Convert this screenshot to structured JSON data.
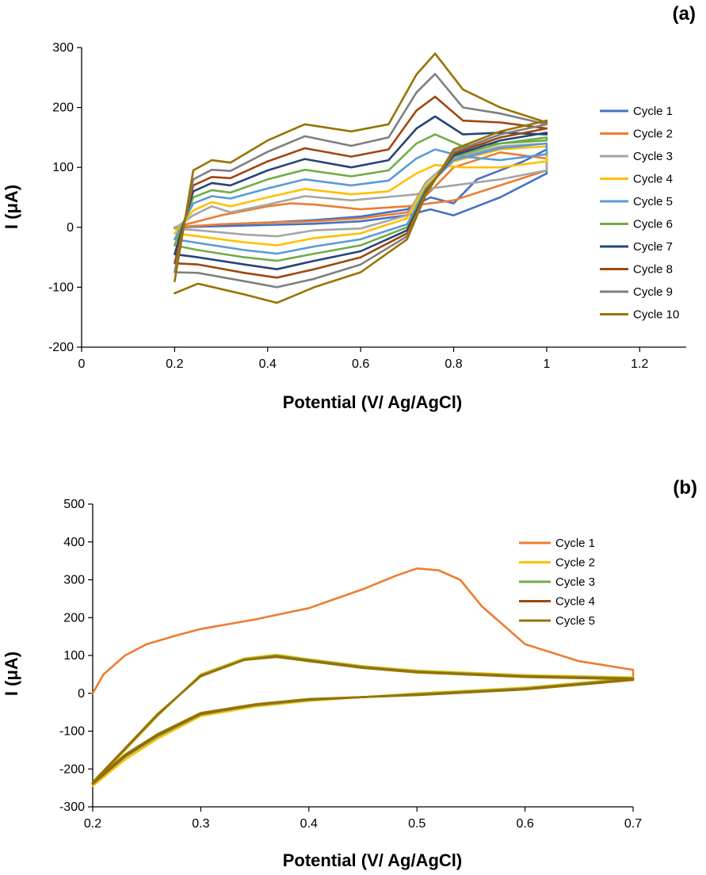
{
  "chart_data": [
    {
      "type": "line",
      "panel_label": "(a)",
      "xlabel": "Potential (V/ Ag/AgCl)",
      "ylabel": "I (μA)",
      "xlim": [
        0,
        1.3
      ],
      "ylim": [
        -200,
        300
      ],
      "x_ticks": [
        "0",
        "0.2",
        "0.4",
        "0.6",
        "0.8",
        "1",
        "1.2"
      ],
      "y_ticks": [
        "300",
        "200",
        "100",
        "0",
        "-100",
        "-200"
      ],
      "grid": false,
      "legend_position": "right",
      "series": [
        {
          "name": "Cycle 1",
          "color": "#4472C4",
          "x": [
            0.2,
            0.3,
            0.4,
            0.5,
            0.6,
            0.7,
            0.75,
            0.8,
            0.9,
            1.0,
            1.0,
            0.95,
            0.85,
            0.8,
            0.75,
            0.7,
            0.6,
            0.5,
            0.4,
            0.3,
            0.2
          ],
          "y": [
            0,
            2,
            4,
            6,
            10,
            20,
            30,
            20,
            50,
            90,
            130,
            110,
            80,
            40,
            50,
            30,
            18,
            12,
            8,
            5,
            0
          ]
        },
        {
          "name": "Cycle 2",
          "color": "#ED7D31",
          "x": [
            0.2,
            0.25,
            0.3,
            0.4,
            0.45,
            0.5,
            0.6,
            0.7,
            0.8,
            0.9,
            1.0,
            1.0,
            0.9,
            0.8,
            0.75,
            0.7,
            0.6,
            0.5,
            0.4,
            0.3,
            0.2
          ],
          "y": [
            0,
            10,
            20,
            35,
            40,
            38,
            30,
            35,
            45,
            70,
            95,
            115,
            125,
            100,
            60,
            25,
            15,
            10,
            8,
            5,
            0
          ]
        },
        {
          "name": "Cycle 3",
          "color": "#A5A5A5",
          "x": [
            0.2,
            0.24,
            0.28,
            0.32,
            0.4,
            0.48,
            0.58,
            0.65,
            0.72,
            0.75,
            0.8,
            0.9,
            1.0,
            1.0,
            0.9,
            0.8,
            0.74,
            0.7,
            0.6,
            0.5,
            0.42,
            0.35,
            0.25,
            0.2
          ],
          "y": [
            -2,
            20,
            35,
            25,
            38,
            52,
            45,
            50,
            55,
            65,
            70,
            80,
            95,
            140,
            135,
            115,
            75,
            20,
            -2,
            -5,
            -15,
            -12,
            -5,
            -2
          ]
        },
        {
          "name": "Cycle 4",
          "color": "#FFC000",
          "x": [
            0.2,
            0.24,
            0.28,
            0.32,
            0.4,
            0.48,
            0.58,
            0.66,
            0.72,
            0.76,
            0.82,
            0.9,
            1.0,
            1.0,
            0.9,
            0.8,
            0.74,
            0.7,
            0.6,
            0.5,
            0.42,
            0.35,
            0.25,
            0.2
          ],
          "y": [
            -10,
            28,
            42,
            35,
            50,
            64,
            55,
            60,
            90,
            104,
            100,
            100,
            110,
            135,
            130,
            110,
            70,
            15,
            -10,
            -18,
            -30,
            -25,
            -15,
            -10
          ]
        },
        {
          "name": "Cycle 5",
          "color": "#5B9BD5",
          "x": [
            0.2,
            0.24,
            0.28,
            0.32,
            0.4,
            0.48,
            0.58,
            0.66,
            0.72,
            0.76,
            0.82,
            0.9,
            1.0,
            1.0,
            0.9,
            0.8,
            0.74,
            0.7,
            0.6,
            0.5,
            0.42,
            0.35,
            0.25,
            0.2
          ],
          "y": [
            -20,
            40,
            52,
            48,
            65,
            80,
            70,
            78,
            115,
            130,
            118,
            112,
            122,
            140,
            132,
            112,
            65,
            5,
            -20,
            -32,
            -44,
            -38,
            -26,
            -20
          ]
        },
        {
          "name": "Cycle 6",
          "color": "#70AD47",
          "x": [
            0.2,
            0.24,
            0.28,
            0.32,
            0.4,
            0.48,
            0.58,
            0.66,
            0.72,
            0.76,
            0.82,
            0.9,
            1.0,
            1.0,
            0.9,
            0.8,
            0.74,
            0.7,
            0.6,
            0.5,
            0.42,
            0.35,
            0.25,
            0.2
          ],
          "y": [
            -30,
            50,
            62,
            58,
            80,
            96,
            85,
            95,
            140,
            155,
            135,
            140,
            145,
            150,
            140,
            118,
            62,
            0,
            -30,
            -44,
            -56,
            -50,
            -38,
            -30
          ]
        },
        {
          "name": "Cycle 7",
          "color": "#264478",
          "x": [
            0.2,
            0.24,
            0.28,
            0.32,
            0.4,
            0.48,
            0.58,
            0.66,
            0.72,
            0.76,
            0.82,
            0.9,
            1.0,
            1.0,
            0.9,
            0.8,
            0.74,
            0.7,
            0.6,
            0.5,
            0.42,
            0.35,
            0.25,
            0.2
          ],
          "y": [
            -45,
            60,
            74,
            70,
            95,
            114,
            100,
            112,
            165,
            185,
            155,
            158,
            155,
            158,
            145,
            120,
            60,
            -5,
            -40,
            -56,
            -70,
            -62,
            -50,
            -45
          ]
        },
        {
          "name": "Cycle 8",
          "color": "#9E480E",
          "x": [
            0.2,
            0.24,
            0.28,
            0.32,
            0.4,
            0.48,
            0.58,
            0.66,
            0.72,
            0.76,
            0.82,
            0.9,
            1.0,
            1.0,
            0.9,
            0.8,
            0.74,
            0.7,
            0.6,
            0.5,
            0.42,
            0.35,
            0.25,
            0.2
          ],
          "y": [
            -60,
            70,
            84,
            82,
            110,
            132,
            118,
            130,
            195,
            218,
            178,
            175,
            165,
            165,
            150,
            123,
            58,
            -10,
            -50,
            -70,
            -84,
            -76,
            -62,
            -60
          ]
        },
        {
          "name": "Cycle 9",
          "color": "#7F7F7F",
          "x": [
            0.2,
            0.24,
            0.28,
            0.32,
            0.4,
            0.48,
            0.58,
            0.66,
            0.72,
            0.76,
            0.82,
            0.9,
            1.0,
            1.0,
            0.9,
            0.8,
            0.74,
            0.7,
            0.6,
            0.5,
            0.42,
            0.35,
            0.25,
            0.2
          ],
          "y": [
            -75,
            80,
            96,
            94,
            126,
            152,
            136,
            150,
            225,
            256,
            200,
            190,
            172,
            172,
            155,
            126,
            56,
            -15,
            -62,
            -86,
            -100,
            -90,
            -76,
            -75
          ]
        },
        {
          "name": "Cycle 10",
          "color": "#997300",
          "x": [
            0.2,
            0.24,
            0.28,
            0.32,
            0.4,
            0.48,
            0.58,
            0.66,
            0.72,
            0.76,
            0.82,
            0.9,
            1.0,
            1.0,
            0.9,
            0.8,
            0.74,
            0.7,
            0.6,
            0.5,
            0.42,
            0.35,
            0.25,
            0.2
          ],
          "y": [
            -90,
            95,
            112,
            108,
            145,
            172,
            160,
            172,
            255,
            290,
            230,
            200,
            175,
            178,
            160,
            130,
            54,
            -20,
            -75,
            -100,
            -126,
            -112,
            -94,
            -110
          ]
        }
      ]
    },
    {
      "type": "line",
      "panel_label": "(b)",
      "xlabel": "Potential (V/ Ag/AgCl)",
      "ylabel": "I (μA)",
      "xlim": [
        0.2,
        0.7
      ],
      "ylim": [
        -300,
        500
      ],
      "x_ticks": [
        "0.2",
        "0.3",
        "0.4",
        "0.5",
        "0.6",
        "0.7"
      ],
      "y_ticks": [
        "500",
        "400",
        "300",
        "200",
        "100",
        "0",
        "-100",
        "-200",
        "-300"
      ],
      "grid": false,
      "legend_position": "top-right",
      "series": [
        {
          "name": "Cycle 1",
          "color": "#ED7D31",
          "x": [
            0.2,
            0.21,
            0.23,
            0.25,
            0.28,
            0.3,
            0.35,
            0.4,
            0.45,
            0.48,
            0.5,
            0.52,
            0.54,
            0.56,
            0.6,
            0.65,
            0.7,
            0.7
          ],
          "y": [
            0,
            50,
            100,
            130,
            155,
            170,
            195,
            225,
            275,
            310,
            330,
            325,
            300,
            230,
            130,
            85,
            62,
            40
          ]
        },
        {
          "name": "Cycle 2",
          "color": "#FFC000",
          "x": [
            0.2,
            0.23,
            0.26,
            0.3,
            0.34,
            0.37,
            0.4,
            0.45,
            0.5,
            0.6,
            0.7,
            0.7,
            0.6,
            0.5,
            0.4,
            0.35,
            0.3,
            0.26,
            0.23,
            0.2
          ],
          "y": [
            -240,
            -150,
            -60,
            50,
            92,
            102,
            90,
            72,
            60,
            48,
            42,
            40,
            15,
            0,
            -20,
            -35,
            -60,
            -120,
            -175,
            -245
          ]
        },
        {
          "name": "Cycle 3",
          "color": "#70AD47",
          "x": [
            0.2,
            0.23,
            0.26,
            0.3,
            0.34,
            0.37,
            0.4,
            0.45,
            0.5,
            0.6,
            0.7,
            0.7,
            0.6,
            0.5,
            0.4,
            0.35,
            0.3,
            0.26,
            0.23,
            0.2
          ],
          "y": [
            -238,
            -148,
            -58,
            48,
            90,
            100,
            88,
            70,
            58,
            46,
            40,
            38,
            13,
            -2,
            -18,
            -32,
            -56,
            -114,
            -168,
            -240
          ]
        },
        {
          "name": "Cycle 4",
          "color": "#9E480E",
          "x": [
            0.2,
            0.23,
            0.26,
            0.3,
            0.34,
            0.37,
            0.4,
            0.45,
            0.5,
            0.6,
            0.7,
            0.7,
            0.6,
            0.5,
            0.4,
            0.35,
            0.3,
            0.26,
            0.23,
            0.2
          ],
          "y": [
            -236,
            -146,
            -56,
            46,
            88,
            97,
            86,
            68,
            56,
            44,
            38,
            36,
            11,
            -4,
            -16,
            -30,
            -54,
            -110,
            -165,
            -238
          ]
        },
        {
          "name": "Cycle 5",
          "color": "#997300",
          "x": [
            0.2,
            0.23,
            0.26,
            0.3,
            0.34,
            0.37,
            0.4,
            0.45,
            0.5,
            0.6,
            0.7,
            0.7,
            0.6,
            0.5,
            0.4,
            0.35,
            0.3,
            0.26,
            0.23,
            0.2
          ],
          "y": [
            -235,
            -145,
            -55,
            45,
            88,
            96,
            85,
            67,
            55,
            43,
            37,
            35,
            10,
            -5,
            -15,
            -29,
            -52,
            -108,
            -162,
            -236
          ]
        }
      ]
    }
  ]
}
